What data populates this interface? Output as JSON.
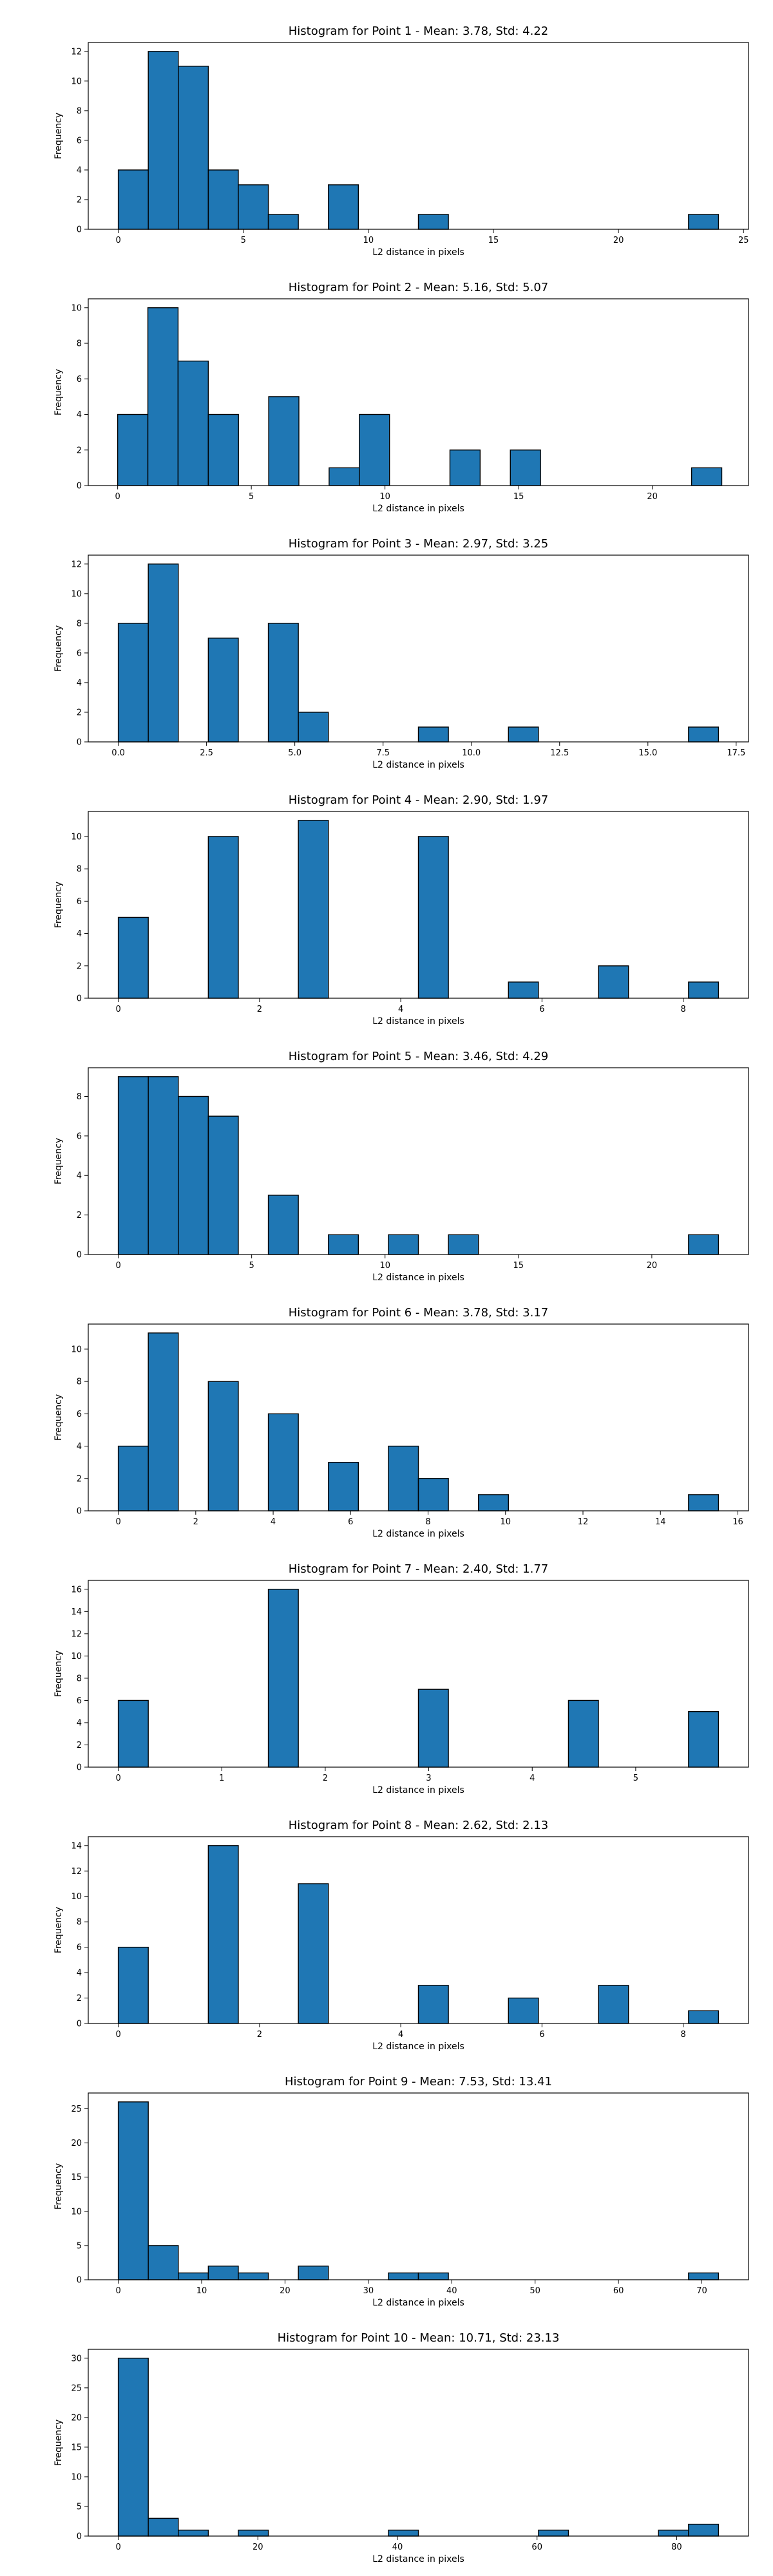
{
  "figure": {
    "bar_color": "#1f77b4",
    "edge_color": "#000000"
  },
  "chart_data": [
    {
      "type": "bar",
      "title": "Histogram for Point 1 - Mean: 3.78, Std: 4.22",
      "xlabel": "L2 distance in pixels",
      "ylabel": "Frequency",
      "xlim": [
        -1.2,
        25.2
      ],
      "ylim": [
        0,
        12.6
      ],
      "xticks": [
        0,
        5,
        10,
        15,
        20,
        25
      ],
      "xtick_labels": [
        "0",
        "5",
        "10",
        "15",
        "20",
        "25"
      ],
      "yticks": [
        0,
        2,
        4,
        6,
        8,
        10,
        12
      ],
      "bin_start": 0,
      "bin_width": 1.2,
      "counts": [
        4,
        12,
        11,
        4,
        3,
        1,
        0,
        3,
        0,
        0,
        1,
        0,
        0,
        0,
        0,
        0,
        0,
        0,
        0,
        1
      ]
    },
    {
      "type": "bar",
      "title": "Histogram for Point 2 - Mean: 5.16, Std: 5.07",
      "xlabel": "L2 distance in pixels",
      "ylabel": "Frequency",
      "xlim": [
        -1.1,
        23.6
      ],
      "ylim": [
        0,
        10.5
      ],
      "xticks": [
        0,
        5,
        10,
        15,
        20
      ],
      "xtick_labels": [
        "0",
        "5",
        "10",
        "15",
        "20"
      ],
      "yticks": [
        0,
        2,
        4,
        6,
        8,
        10
      ],
      "bin_start": 0,
      "bin_width": 1.13,
      "counts": [
        4,
        10,
        7,
        4,
        0,
        5,
        0,
        1,
        4,
        0,
        0,
        2,
        0,
        2,
        0,
        0,
        0,
        0,
        0,
        1
      ]
    },
    {
      "type": "bar",
      "title": "Histogram for Point 3 - Mean: 2.97, Std: 3.25",
      "xlabel": "L2 distance in pixels",
      "ylabel": "Frequency",
      "xlim": [
        -0.85,
        17.85
      ],
      "ylim": [
        0,
        12.6
      ],
      "xticks": [
        0,
        2.5,
        5,
        7.5,
        10,
        12.5,
        15,
        17.5
      ],
      "xtick_labels": [
        "0.0",
        "2.5",
        "5.0",
        "7.5",
        "10.0",
        "12.5",
        "15.0",
        "17.5"
      ],
      "yticks": [
        0,
        2,
        4,
        6,
        8,
        10,
        12
      ],
      "bin_start": 0,
      "bin_width": 0.85,
      "counts": [
        8,
        12,
        0,
        7,
        0,
        8,
        2,
        0,
        0,
        0,
        1,
        0,
        0,
        1,
        0,
        0,
        0,
        0,
        0,
        1
      ]
    },
    {
      "type": "bar",
      "title": "Histogram for Point 4 - Mean: 2.90, Std: 1.97",
      "xlabel": "L2 distance in pixels",
      "ylabel": "Frequency",
      "xlim": [
        -0.425,
        8.925
      ],
      "ylim": [
        0,
        11.55
      ],
      "xticks": [
        0,
        2,
        4,
        6,
        8
      ],
      "xtick_labels": [
        "0",
        "2",
        "4",
        "6",
        "8"
      ],
      "yticks": [
        0,
        2,
        4,
        6,
        8,
        10
      ],
      "bin_start": 0,
      "bin_width": 0.425,
      "counts": [
        5,
        0,
        0,
        10,
        0,
        0,
        11,
        0,
        0,
        0,
        10,
        0,
        0,
        1,
        0,
        0,
        2,
        0,
        0,
        1
      ]
    },
    {
      "type": "bar",
      "title": "Histogram for Point 5 - Mean: 3.46, Std: 4.29",
      "xlabel": "L2 distance in pixels",
      "ylabel": "Frequency",
      "xlim": [
        -1.125,
        23.625
      ],
      "ylim": [
        0,
        9.45
      ],
      "xticks": [
        0,
        5,
        10,
        15,
        20
      ],
      "xtick_labels": [
        "0",
        "5",
        "10",
        "15",
        "20"
      ],
      "yticks": [
        0,
        2,
        4,
        6,
        8
      ],
      "bin_start": 0,
      "bin_width": 1.125,
      "counts": [
        9,
        9,
        8,
        7,
        0,
        3,
        0,
        1,
        0,
        1,
        0,
        1,
        0,
        0,
        0,
        0,
        0,
        0,
        0,
        1
      ]
    },
    {
      "type": "bar",
      "title": "Histogram for Point 6 - Mean: 3.78, Std: 3.17",
      "xlabel": "L2 distance in pixels",
      "ylabel": "Frequency",
      "xlim": [
        -0.775,
        16.275
      ],
      "ylim": [
        0,
        11.55
      ],
      "xticks": [
        0,
        2,
        4,
        6,
        8,
        10,
        12,
        14,
        16
      ],
      "xtick_labels": [
        "0",
        "2",
        "4",
        "6",
        "8",
        "10",
        "12",
        "14",
        "16"
      ],
      "yticks": [
        0,
        2,
        4,
        6,
        8,
        10
      ],
      "bin_start": 0,
      "bin_width": 0.775,
      "counts": [
        4,
        11,
        0,
        8,
        0,
        6,
        0,
        3,
        0,
        4,
        2,
        0,
        1,
        0,
        0,
        0,
        0,
        0,
        0,
        1
      ]
    },
    {
      "type": "bar",
      "title": "Histogram for Point 7 - Mean: 2.40, Std: 1.77",
      "xlabel": "L2 distance in pixels",
      "ylabel": "Frequency",
      "xlim": [
        -0.29,
        6.09
      ],
      "ylim": [
        0,
        16.8
      ],
      "xticks": [
        0,
        1,
        2,
        3,
        4,
        5
      ],
      "xtick_labels": [
        "0",
        "1",
        "2",
        "3",
        "4",
        "5"
      ],
      "yticks": [
        0,
        2,
        4,
        6,
        8,
        10,
        12,
        14,
        16
      ],
      "bin_start": 0,
      "bin_width": 0.29,
      "counts": [
        6,
        0,
        0,
        0,
        0,
        16,
        0,
        0,
        0,
        0,
        7,
        0,
        0,
        0,
        0,
        6,
        0,
        0,
        0,
        5
      ]
    },
    {
      "type": "bar",
      "title": "Histogram for Point 8 - Mean: 2.62, Std: 2.13",
      "xlabel": "L2 distance in pixels",
      "ylabel": "Frequency",
      "xlim": [
        -0.425,
        8.925
      ],
      "ylim": [
        0,
        14.7
      ],
      "xticks": [
        0,
        2,
        4,
        6,
        8
      ],
      "xtick_labels": [
        "0",
        "2",
        "4",
        "6",
        "8"
      ],
      "yticks": [
        0,
        2,
        4,
        6,
        8,
        10,
        12,
        14
      ],
      "bin_start": 0,
      "bin_width": 0.425,
      "counts": [
        6,
        0,
        0,
        14,
        0,
        0,
        11,
        0,
        0,
        0,
        3,
        0,
        0,
        2,
        0,
        0,
        3,
        0,
        0,
        1
      ]
    },
    {
      "type": "bar",
      "title": "Histogram for Point 9 - Mean: 7.53, Std: 13.41",
      "xlabel": "L2 distance in pixels",
      "ylabel": "Frequency",
      "xlim": [
        -3.6,
        75.6
      ],
      "ylim": [
        0,
        27.3
      ],
      "xticks": [
        0,
        10,
        20,
        30,
        40,
        50,
        60,
        70
      ],
      "xtick_labels": [
        "0",
        "10",
        "20",
        "30",
        "40",
        "50",
        "60",
        "70"
      ],
      "yticks": [
        0,
        5,
        10,
        15,
        20,
        25
      ],
      "bin_start": 0,
      "bin_width": 3.6,
      "counts": [
        26,
        5,
        1,
        2,
        1,
        0,
        2,
        0,
        0,
        1,
        1,
        0,
        0,
        0,
        0,
        0,
        0,
        0,
        0,
        1
      ]
    },
    {
      "type": "bar",
      "title": "Histogram for Point 10 - Mean: 10.71, Std: 23.13",
      "xlabel": "L2 distance in pixels",
      "ylabel": "Frequency",
      "xlim": [
        -4.3,
        90.3
      ],
      "ylim": [
        0,
        31.5
      ],
      "xticks": [
        0,
        20,
        40,
        60,
        80
      ],
      "xtick_labels": [
        "0",
        "20",
        "40",
        "60",
        "80"
      ],
      "yticks": [
        0,
        5,
        10,
        15,
        20,
        25,
        30
      ],
      "bin_start": 0,
      "bin_width": 4.3,
      "counts": [
        30,
        3,
        1,
        0,
        1,
        0,
        0,
        0,
        0,
        1,
        0,
        0,
        0,
        0,
        1,
        0,
        0,
        0,
        1,
        2
      ]
    }
  ]
}
